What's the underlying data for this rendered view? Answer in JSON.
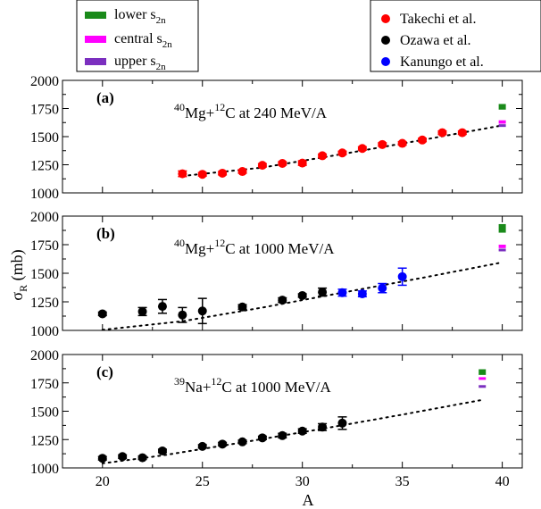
{
  "figure": {
    "y_axis_label_main": "σ",
    "y_axis_label_sub": "R",
    "y_axis_label_unit": " (mb)",
    "x_axis_label": "A",
    "legend_s2n": [
      {
        "name": "lower s",
        "sub": "2n",
        "color": "#1a8a1a"
      },
      {
        "name": "central s",
        "sub": "2n",
        "color": "#ff00ff"
      },
      {
        "name": "upper s",
        "sub": "2n",
        "color": "#7b2fbf"
      }
    ],
    "legend_data": [
      {
        "name": "Takechi et al.",
        "color": "#ff0000"
      },
      {
        "name": "Ozawa et al.",
        "color": "#000000"
      },
      {
        "name": "Kanungo et al.",
        "color": "#0000ff"
      }
    ]
  },
  "chart_data": [
    {
      "type": "scatter",
      "panel_label": "(a)",
      "title": {
        "sup1": "40",
        "el1": "Mg+",
        "sup2": "12",
        "rest": "C at 240 MeV/A"
      },
      "xlim": [
        18,
        41
      ],
      "ylim": [
        1000,
        2000
      ],
      "xticks": [
        20,
        25,
        30,
        35,
        40
      ],
      "yticks": [
        1000,
        1250,
        1500,
        1750,
        2000
      ],
      "series": [
        {
          "name": "Takechi et al.",
          "color": "#ff0000",
          "points": [
            {
              "x": 24,
              "y": 1170,
              "err": 25
            },
            {
              "x": 25,
              "y": 1165,
              "err": 15
            },
            {
              "x": 26,
              "y": 1175,
              "err": 15
            },
            {
              "x": 27,
              "y": 1190,
              "err": 15
            },
            {
              "x": 28,
              "y": 1245,
              "err": 15
            },
            {
              "x": 29,
              "y": 1262,
              "err": 15
            },
            {
              "x": 30,
              "y": 1265,
              "err": 20
            },
            {
              "x": 31,
              "y": 1330,
              "err": 15
            },
            {
              "x": 32,
              "y": 1355,
              "err": 15
            },
            {
              "x": 33,
              "y": 1395,
              "err": 15
            },
            {
              "x": 34,
              "y": 1430,
              "err": 15
            },
            {
              "x": 35,
              "y": 1440,
              "err": 15
            },
            {
              "x": 36,
              "y": 1470,
              "err": 15
            },
            {
              "x": 37,
              "y": 1535,
              "err": 15
            },
            {
              "x": 38,
              "y": 1535,
              "err": 15
            }
          ]
        }
      ],
      "calc_line": [
        [
          24,
          1150
        ],
        [
          28,
          1225
        ],
        [
          32,
          1345
        ],
        [
          36,
          1470
        ],
        [
          40,
          1600
        ]
      ],
      "bars_at_A": 40,
      "bars": [
        {
          "band": "lower",
          "color": "#1a8a1a",
          "y_low": 1740,
          "y_high": 1790
        },
        {
          "band": "central",
          "color": "#ff00ff",
          "y_low": 1615,
          "y_high": 1645
        },
        {
          "band": "upper",
          "color": "#7b2fbf",
          "y_low": 1600,
          "y_high": 1610
        }
      ]
    },
    {
      "type": "scatter",
      "panel_label": "(b)",
      "title": {
        "sup1": "40",
        "el1": "Mg+",
        "sup2": "12",
        "rest": "C at 1000 MeV/A"
      },
      "xlim": [
        18,
        41
      ],
      "ylim": [
        1000,
        2000
      ],
      "xticks": [
        20,
        25,
        30,
        35,
        40
      ],
      "yticks": [
        1000,
        1250,
        1500,
        1750,
        2000
      ],
      "series": [
        {
          "name": "Ozawa et al.",
          "color": "#000000",
          "points": [
            {
              "x": 20,
              "y": 1145,
              "err": 15
            },
            {
              "x": 22,
              "y": 1165,
              "err": 35
            },
            {
              "x": 23,
              "y": 1210,
              "err": 60
            },
            {
              "x": 24,
              "y": 1135,
              "err": 65
            },
            {
              "x": 25,
              "y": 1170,
              "err": 110
            },
            {
              "x": 27,
              "y": 1205,
              "err": 20
            },
            {
              "x": 29,
              "y": 1265,
              "err": 20
            },
            {
              "x": 30,
              "y": 1305,
              "err": 15
            },
            {
              "x": 31,
              "y": 1335,
              "err": 35
            }
          ]
        },
        {
          "name": "Kanungo et al.",
          "color": "#0000ff",
          "points": [
            {
              "x": 32,
              "y": 1330,
              "err": 30
            },
            {
              "x": 33,
              "y": 1320,
              "err": 25
            },
            {
              "x": 34,
              "y": 1370,
              "err": 40
            },
            {
              "x": 35,
              "y": 1470,
              "err": 75
            }
          ]
        }
      ],
      "calc_line": [
        [
          20,
          1005
        ],
        [
          24,
          1080
        ],
        [
          28,
          1200
        ],
        [
          32,
          1330
        ],
        [
          36,
          1460
        ],
        [
          40,
          1595
        ]
      ],
      "bars_at_A": 40,
      "bars": [
        {
          "band": "lower",
          "color": "#1a8a1a",
          "y_low": 1855,
          "y_high": 1930
        },
        {
          "band": "central",
          "color": "#ff00ff",
          "y_low": 1720,
          "y_high": 1750
        },
        {
          "band": "upper",
          "color": "#7b2fbf",
          "y_low": 1700,
          "y_high": 1715
        }
      ]
    },
    {
      "type": "scatter",
      "panel_label": "(c)",
      "title": {
        "sup1": "39",
        "el1": "Na+",
        "sup2": "12",
        "rest": "C at 1000 MeV/A"
      },
      "xlim": [
        18,
        41
      ],
      "ylim": [
        1000,
        2000
      ],
      "xticks": [
        20,
        25,
        30,
        35,
        40
      ],
      "yticks": [
        1000,
        1250,
        1500,
        1750,
        2000
      ],
      "series": [
        {
          "name": "Ozawa et al.",
          "color": "#000000",
          "points": [
            {
              "x": 20,
              "y": 1085,
              "err": 15
            },
            {
              "x": 21,
              "y": 1100,
              "err": 15
            },
            {
              "x": 22,
              "y": 1090,
              "err": 15
            },
            {
              "x": 23,
              "y": 1150,
              "err": 15
            },
            {
              "x": 25,
              "y": 1190,
              "err": 15
            },
            {
              "x": 26,
              "y": 1210,
              "err": 15
            },
            {
              "x": 27,
              "y": 1230,
              "err": 15
            },
            {
              "x": 28,
              "y": 1265,
              "err": 15
            },
            {
              "x": 29,
              "y": 1285,
              "err": 20
            },
            {
              "x": 30,
              "y": 1325,
              "err": 20
            },
            {
              "x": 31,
              "y": 1360,
              "err": 30
            },
            {
              "x": 32,
              "y": 1395,
              "err": 55
            }
          ]
        }
      ],
      "calc_line": [
        [
          20,
          1040
        ],
        [
          23,
          1110
        ],
        [
          27,
          1225
        ],
        [
          31,
          1345
        ],
        [
          35,
          1470
        ],
        [
          39,
          1600
        ]
      ],
      "bars_at_A": 39,
      "bars": [
        {
          "band": "lower",
          "color": "#1a8a1a",
          "y_low": 1820,
          "y_high": 1870
        },
        {
          "band": "central",
          "color": "#ff00ff",
          "y_low": 1780,
          "y_high": 1800
        },
        {
          "band": "upper",
          "color": "#7b2fbf",
          "y_low": 1720,
          "y_high": 1730
        }
      ]
    }
  ]
}
